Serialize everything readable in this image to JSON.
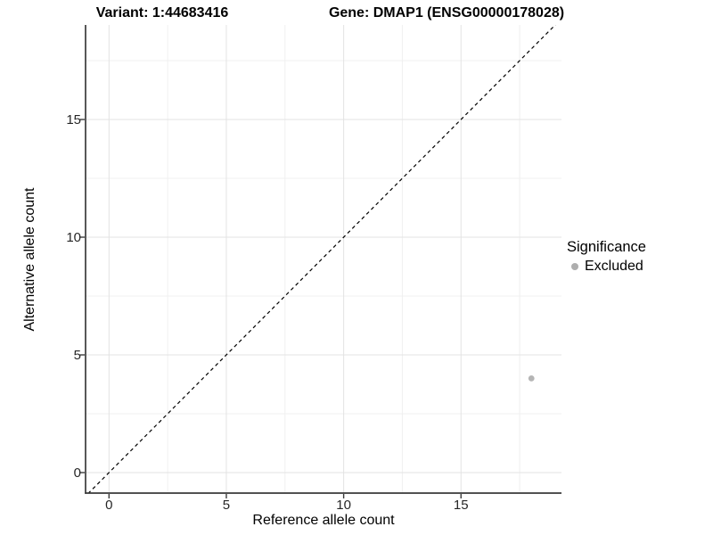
{
  "header": {
    "title_left": "Variant: 1:44683416",
    "title_right": "Gene: DMAP1 (ENSG00000178028)"
  },
  "axes": {
    "x": {
      "label": "Reference allele count",
      "ticks": [
        "0",
        "5",
        "10",
        "15"
      ]
    },
    "y": {
      "label": "Alternative allele count",
      "ticks": [
        "0",
        "5",
        "10",
        "15"
      ]
    }
  },
  "legend": {
    "title": "Significance",
    "items": [
      {
        "label": "Excluded",
        "color": "#aeaeae"
      }
    ]
  },
  "colors": {
    "background": "#ffffff",
    "grid_major": "#e3e3e3",
    "grid_minor": "#f0f0f0",
    "axis_line": "#3a3a3a",
    "tick_text": "#262626",
    "point": "#b5b5b5",
    "reference_line": "#000000"
  },
  "chart_data": {
    "type": "scatter",
    "title_left": "Variant: 1:44683416",
    "title_right": "Gene: DMAP1 (ENSG00000178028)",
    "xlabel": "Reference allele count",
    "ylabel": "Alternative allele count",
    "xlim": [
      -1.0,
      19.3
    ],
    "ylim": [
      -0.9,
      19.0
    ],
    "x_ticks": [
      0,
      5,
      10,
      15
    ],
    "y_ticks": [
      0,
      5,
      10,
      15
    ],
    "x_minor_ticks": [
      2.5,
      7.5,
      12.5,
      17.5
    ],
    "y_minor_ticks": [
      2.5,
      7.5,
      12.5,
      17.5
    ],
    "grid": true,
    "legend_position": "right",
    "series": [
      {
        "name": "Excluded",
        "color": "#b5b5b5",
        "points": [
          [
            18,
            4
          ]
        ]
      }
    ],
    "reference_line": {
      "kind": "y=x",
      "style": "dashed",
      "color": "#000000"
    }
  }
}
